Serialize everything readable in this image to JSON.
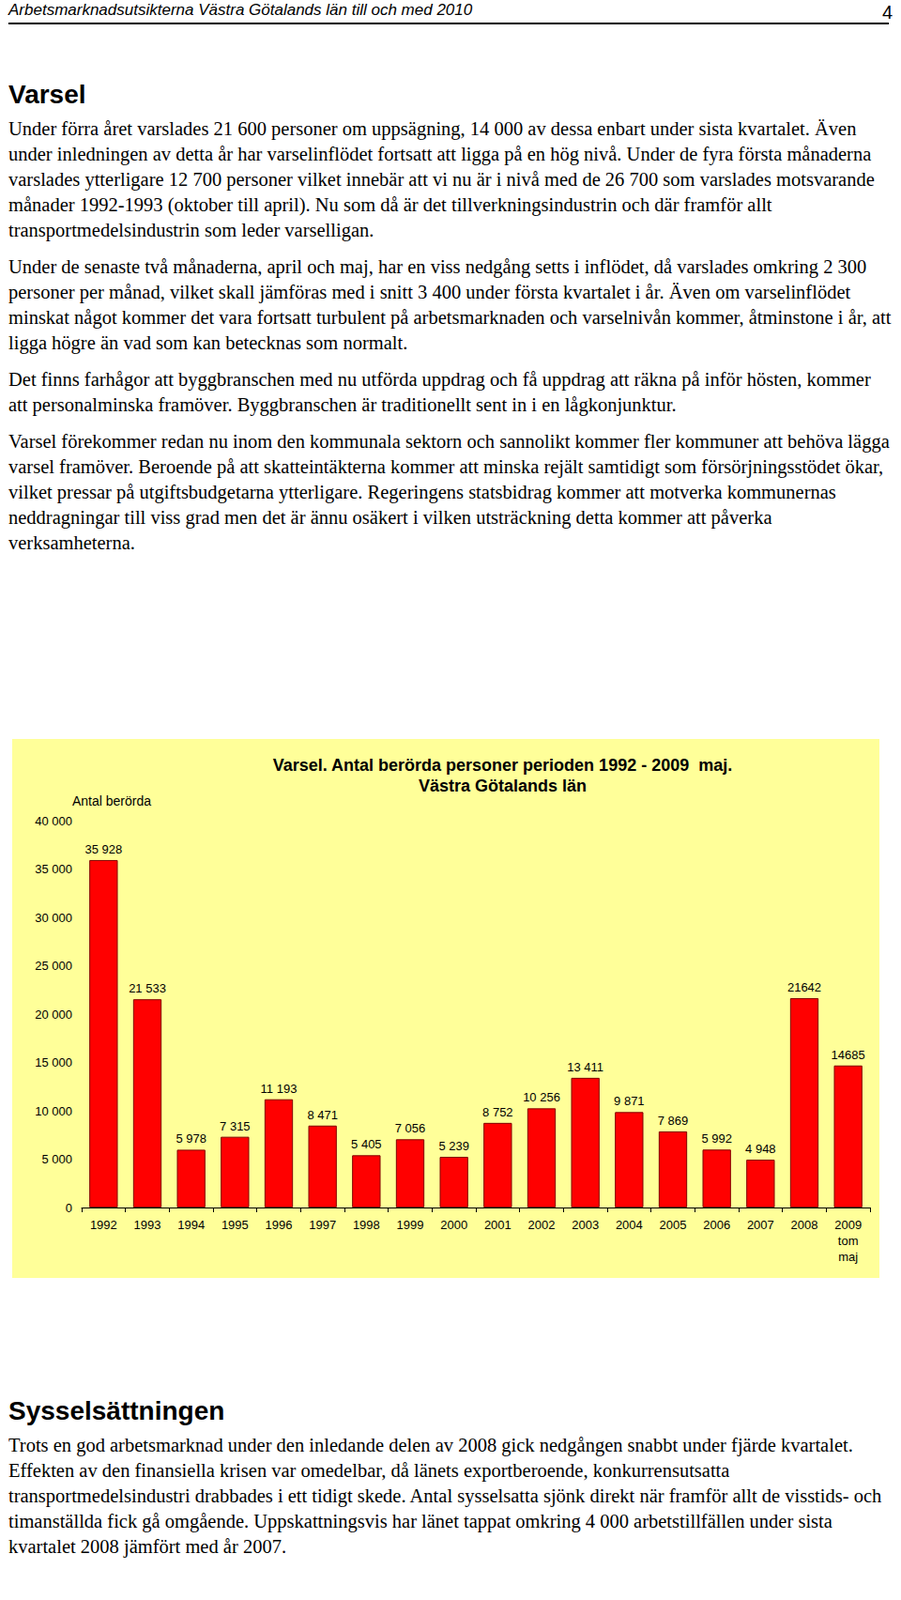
{
  "header": {
    "text": "Arbetsmarknadsutsikterna Västra Götalands län till och med 2010",
    "page": "4"
  },
  "sections": [
    {
      "heading": "Varsel",
      "paragraphs": [
        "Under förra året varslades 21 600 personer om uppsägning, 14 000 av dessa enbart under sista kvartalet. Även under inledningen av detta år har varselinflödet fortsatt att ligga på en hög nivå. Under de fyra första månaderna varslades ytterligare 12 700 personer vilket innebär att vi nu är i nivå med de 26 700 som varslades motsvarande månader 1992-1993 (oktober till april). Nu som då är det tillverkningsindustrin och där framför allt transportmedelsindustrin som leder varselligan.",
        "Under de senaste två månaderna, april och maj, har en viss nedgång setts i inflödet, då varslades omkring 2 300 personer per månad, vilket skall jämföras med i snitt 3 400 under första kvartalet i år. Även om varselinflödet minskat något kommer det vara fortsatt turbulent på arbetsmarknaden och varselnivån kommer, åtminstone i år, att ligga högre än vad som kan betecknas som normalt.",
        "Det finns farhågor att byggbranschen med nu utförda uppdrag och få uppdrag att räkna på inför hösten, kommer att personalminska framöver. Byggbranschen är traditionellt sent in i en lågkonjunktur.",
        "Varsel förekommer redan nu inom den kommunala sektorn och sannolikt kommer fler kommuner att behöva lägga varsel framöver. Beroende på att skatteintäkterna kommer att minska rejält samtidigt som försörjningsstödet ökar, vilket pressar på utgiftsbudgetarna ytterligare.  Regeringens statsbidrag kommer att motverka kommunernas neddragningar till viss grad men det är ännu osäkert i vilken utsträckning detta kommer att påverka verksamheterna."
      ]
    },
    {
      "heading": "Sysselsättningen",
      "paragraphs": [
        "Trots en god arbetsmarknad under den inledande delen av 2008 gick nedgången snabbt under fjärde kvartalet. Effekten av den finansiella krisen var omedelbar, då länets exportberoende, konkurrensutsatta transportmedelsindustri drabbades i ett tidigt skede. Antal sysselsatta sjönk direkt när framför allt de visstids- och timanställda fick gå omgående. Uppskattningsvis har länet tappat omkring 4 000 arbetstillfällen under sista kvartalet 2008 jämfört med år 2007."
      ]
    }
  ],
  "chart_data": {
    "type": "bar",
    "title": "Varsel. Antal berörda personer perioden 1992 - 2009  maj.",
    "subtitle": "Västra Götalands län",
    "y_label": "Antal berörda",
    "categories": [
      "1992",
      "1993",
      "1994",
      "1995",
      "1996",
      "1997",
      "1998",
      "1999",
      "2000",
      "2001",
      "2002",
      "2003",
      "2004",
      "2005",
      "2006",
      "2007",
      "2008",
      "2009\ntom\nmaj"
    ],
    "values": [
      35928,
      21533,
      5978,
      7315,
      11193,
      8471,
      5405,
      7056,
      5239,
      8752,
      10256,
      13411,
      9871,
      7869,
      5992,
      4948,
      21642,
      14685
    ],
    "value_labels": [
      "35 928",
      "21 533",
      "5 978",
      "7 315",
      "11 193",
      "8 471",
      "5 405",
      "7 056",
      "5 239",
      "8 752",
      "10 256",
      "13 411",
      "9 871",
      "7 869",
      "5 992",
      "4 948",
      "21642",
      "14685"
    ],
    "color": "#ff0000",
    "ylim": [
      0,
      40000
    ],
    "yticks": [
      0,
      {
        "value": 5000,
        "label": "5 000"
      },
      {
        "value": 10000,
        "label": "10 000"
      },
      {
        "value": 15000,
        "label": "15 000"
      },
      {
        "value": 20000,
        "label": "20 000"
      },
      {
        "value": 25000,
        "label": "25 000"
      },
      {
        "value": 30000,
        "label": "30 000"
      },
      {
        "value": 35000,
        "label": "35 000"
      },
      {
        "value": 40000,
        "label": "40 000"
      }
    ],
    "grid": false,
    "data_labels": true
  }
}
